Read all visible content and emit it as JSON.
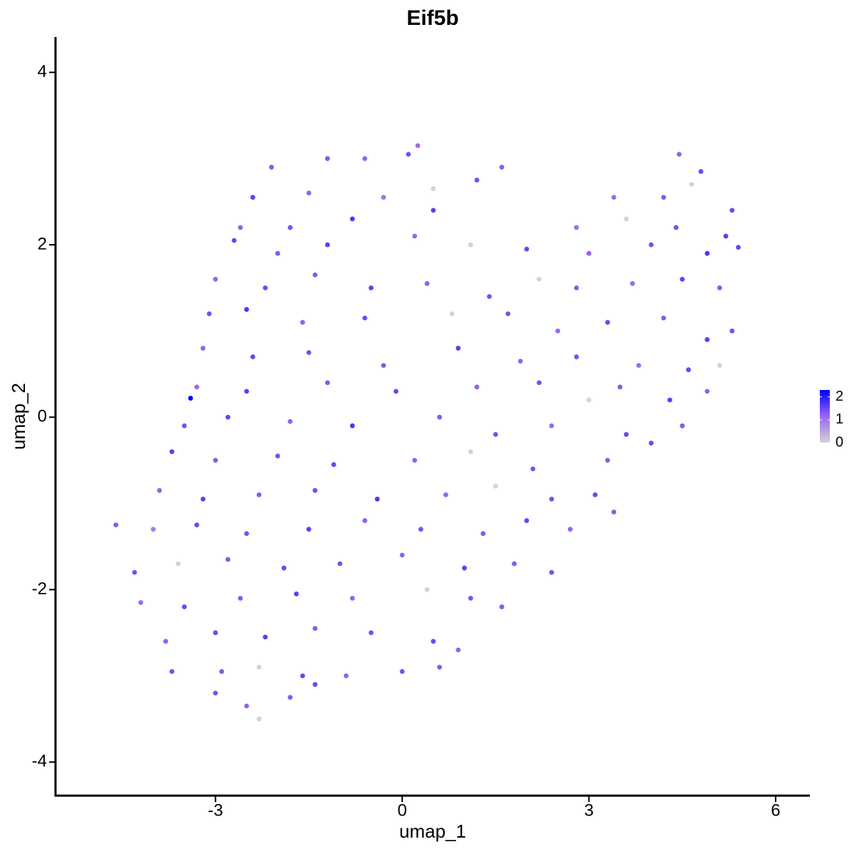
{
  "chart_data": {
    "type": "scatter",
    "title": "Eif5b",
    "x_label": "umap_1",
    "y_label": "umap_2",
    "xlim": [
      -5.57,
      6.55
    ],
    "ylim": [
      -4.39,
      4.41
    ],
    "xticks": [
      -3,
      0,
      3,
      6
    ],
    "yticks": [
      -4,
      -2,
      0,
      2,
      4
    ],
    "x": [
      -1.2,
      -0.6,
      0.1,
      0.25,
      -2.1,
      4.45,
      4.8,
      1.6,
      -2.4,
      -1.5,
      -0.3,
      0.5,
      1.2,
      3.4,
      4.2,
      4.65,
      5.3,
      -2.6,
      -1.8,
      -0.8,
      0.5,
      2.8,
      3.6,
      4.4,
      5.2,
      -2.7,
      -2.0,
      -1.2,
      0.2,
      1.1,
      2.0,
      3.0,
      4.0,
      4.9,
      5.4,
      -3.0,
      -2.2,
      -1.4,
      -0.5,
      0.4,
      1.4,
      2.2,
      2.8,
      3.7,
      4.5,
      5.1,
      -3.1,
      -2.5,
      -1.6,
      -0.6,
      0.8,
      1.7,
      2.5,
      3.3,
      4.2,
      4.9,
      5.3,
      -3.2,
      -2.4,
      -1.5,
      -0.3,
      0.9,
      1.9,
      2.8,
      3.8,
      4.6,
      5.1,
      -3.3,
      -3.4,
      -2.5,
      -1.2,
      -0.1,
      1.2,
      2.2,
      3.0,
      3.5,
      4.3,
      4.9,
      -3.5,
      -2.8,
      -1.8,
      -0.8,
      0.6,
      1.5,
      2.4,
      3.6,
      4.5,
      -3.7,
      -3.0,
      -2.0,
      -1.1,
      0.2,
      1.1,
      2.1,
      3.3,
      4.0,
      -3.9,
      -3.2,
      -2.3,
      -1.4,
      -0.4,
      0.7,
      1.5,
      2.4,
      3.1,
      3.4,
      -4.6,
      -4.0,
      -3.3,
      -2.5,
      -1.5,
      -0.6,
      0.3,
      1.3,
      2.0,
      2.7,
      -4.3,
      -3.6,
      -2.8,
      -1.9,
      -1.0,
      0.0,
      1.0,
      1.8,
      2.4,
      -4.2,
      -3.5,
      -2.6,
      -1.7,
      -0.8,
      0.4,
      1.1,
      1.6,
      -3.8,
      -3.0,
      -2.2,
      -1.4,
      -0.5,
      0.5,
      0.9,
      -3.7,
      -2.9,
      -2.3,
      -1.6,
      -0.9,
      0.0,
      0.6,
      -3.0,
      -2.5,
      -2.3,
      -1.8,
      -1.4
    ],
    "y": [
      3.0,
      3.0,
      3.05,
      3.15,
      2.9,
      3.05,
      2.85,
      2.9,
      2.55,
      2.6,
      2.55,
      2.65,
      2.75,
      2.55,
      2.55,
      2.7,
      2.4,
      2.2,
      2.2,
      2.3,
      2.4,
      2.2,
      2.3,
      2.2,
      2.1,
      2.05,
      1.9,
      2.0,
      2.1,
      2.0,
      1.95,
      1.9,
      2.0,
      1.9,
      1.97,
      1.6,
      1.5,
      1.65,
      1.5,
      1.55,
      1.4,
      1.6,
      1.5,
      1.55,
      1.6,
      1.5,
      1.2,
      1.25,
      1.1,
      1.15,
      1.2,
      1.2,
      1.0,
      1.1,
      1.15,
      0.9,
      1.0,
      0.8,
      0.7,
      0.75,
      0.6,
      0.8,
      0.65,
      0.7,
      0.6,
      0.55,
      0.6,
      0.35,
      0.22,
      0.3,
      0.4,
      0.3,
      0.35,
      0.4,
      0.2,
      0.35,
      0.2,
      0.3,
      -0.1,
      0.0,
      -0.05,
      -0.1,
      0.0,
      -0.2,
      -0.1,
      -0.2,
      -0.1,
      -0.4,
      -0.5,
      -0.45,
      -0.55,
      -0.5,
      -0.4,
      -0.6,
      -0.5,
      -0.3,
      -0.85,
      -0.95,
      -0.9,
      -0.85,
      -0.95,
      -0.9,
      -0.8,
      -0.95,
      -0.9,
      -1.1,
      -1.25,
      -1.3,
      -1.25,
      -1.35,
      -1.3,
      -1.2,
      -1.3,
      -1.35,
      -1.2,
      -1.3,
      -1.8,
      -1.7,
      -1.65,
      -1.75,
      -1.7,
      -1.6,
      -1.75,
      -1.7,
      -1.8,
      -2.15,
      -2.2,
      -2.1,
      -2.05,
      -2.1,
      -2.0,
      -2.1,
      -2.2,
      -2.6,
      -2.5,
      -2.55,
      -2.45,
      -2.5,
      -2.6,
      -2.7,
      -2.95,
      -2.95,
      -2.9,
      -3.0,
      -3.0,
      -2.95,
      -2.9,
      -3.2,
      -3.35,
      -3.5,
      -3.25,
      -3.1
    ],
    "values": [
      1.3,
      1.2,
      1.4,
      1.1,
      1.3,
      1.2,
      1.5,
      1.3,
      1.6,
      1.2,
      1.0,
      0,
      1.4,
      1.1,
      1.3,
      0,
      1.5,
      1.2,
      1.4,
      1.7,
      1.6,
      1.1,
      0,
      1.4,
      1.6,
      1.5,
      1.3,
      1.6,
      1.1,
      0,
      1.5,
      1.2,
      1.4,
      1.7,
      1.5,
      1.2,
      1.5,
      1.3,
      1.6,
      1.2,
      1.4,
      0,
      1.3,
      1.1,
      1.6,
      1.3,
      1.4,
      1.7,
      1.2,
      1.5,
      0,
      1.4,
      1.1,
      1.5,
      1.3,
      1.6,
      1.4,
      1.2,
      1.5,
      1.4,
      1.3,
      1.6,
      1.2,
      1.4,
      1.1,
      1.5,
      0,
      1.1,
      2.3,
      1.6,
      1.3,
      1.5,
      1.2,
      1.4,
      0,
      1.3,
      1.6,
      1.2,
      1.4,
      1.5,
      1.2,
      1.7,
      1.3,
      1.4,
      1.1,
      1.5,
      1.3,
      1.6,
      1.3,
      1.4,
      1.5,
      1.2,
      0,
      1.4,
      1.3,
      1.5,
      1.2,
      1.6,
      1.3,
      1.4,
      1.7,
      1.2,
      0,
      1.4,
      1.5,
      1.3,
      1.3,
      0.9,
      1.5,
      1.4,
      1.6,
      1.2,
      1.4,
      1.3,
      1.5,
      1.2,
      1.4,
      0,
      1.3,
      1.5,
      1.4,
      1.2,
      1.6,
      1.3,
      1.4,
      1.1,
      1.5,
      1.3,
      1.6,
      1.2,
      0,
      1.4,
      1.3,
      1.2,
      1.5,
      1.6,
      1.3,
      1.4,
      1.5,
      1.2,
      1.4,
      1.3,
      0,
      1.5,
      1.2,
      1.4,
      1.3,
      1.4,
      1.2,
      0,
      1.3,
      1.5
    ],
    "colorscale": {
      "colors": [
        "#d3d3d3",
        "#9a66ee",
        "#0000ff"
      ],
      "lim": [
        0,
        2.3
      ],
      "ticks": [
        0,
        1,
        2
      ]
    }
  }
}
